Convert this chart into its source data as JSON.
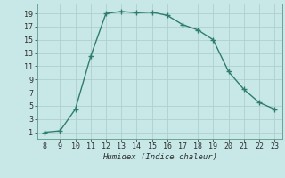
{
  "x": [
    8,
    9,
    10,
    11,
    12,
    13,
    14,
    15,
    16,
    17,
    18,
    19,
    20,
    21,
    22,
    23
  ],
  "y": [
    1,
    1.2,
    4.5,
    12.5,
    19,
    19.3,
    19.1,
    19.2,
    18.7,
    17.3,
    16.5,
    15,
    10.2,
    7.5,
    5.5,
    4.5
  ],
  "xlabel": "Humidex (Indice chaleur)",
  "xlim": [
    7.5,
    23.5
  ],
  "ylim": [
    0,
    20.5
  ],
  "xticks": [
    8,
    9,
    10,
    11,
    12,
    13,
    14,
    15,
    16,
    17,
    18,
    19,
    20,
    21,
    22,
    23
  ],
  "yticks": [
    1,
    3,
    5,
    7,
    9,
    11,
    13,
    15,
    17,
    19
  ],
  "line_color": "#2e7d6e",
  "bg_color": "#c8e8e8",
  "grid_color": "#b0d0d0",
  "marker": "+",
  "marker_size": 5,
  "line_width": 1.0
}
